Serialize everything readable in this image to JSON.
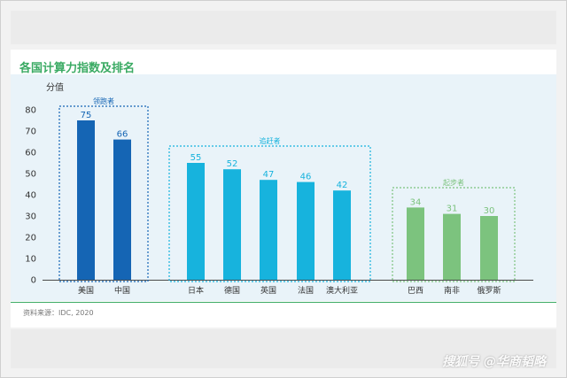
{
  "chart_data": {
    "type": "bar",
    "title": "各国计算力指数及排名",
    "ylabel": "分值",
    "ylim": [
      0,
      80
    ],
    "yticks": [
      0,
      10,
      20,
      30,
      40,
      50,
      60,
      70,
      80
    ],
    "grid": false,
    "categories": [
      "美国",
      "中国",
      "日本",
      "德国",
      "英国",
      "法国",
      "澳大利亚",
      "巴西",
      "南非",
      "俄罗斯"
    ],
    "values": [
      75,
      66,
      55,
      52,
      47,
      46,
      42,
      34,
      31,
      30
    ],
    "groups": [
      {
        "name": "领跑者",
        "categories": [
          "美国",
          "中国"
        ],
        "color": "#1565b4"
      },
      {
        "name": "追赶者",
        "categories": [
          "日本",
          "德国",
          "英国",
          "法国",
          "澳大利亚"
        ],
        "color": "#17b3dd"
      },
      {
        "name": "起步者",
        "categories": [
          "巴西",
          "南非",
          "俄罗斯"
        ],
        "color": "#7cc37e"
      }
    ],
    "source": "资料来源：IDC, 2020"
  },
  "watermark": "搜狐号 @华商韬略"
}
